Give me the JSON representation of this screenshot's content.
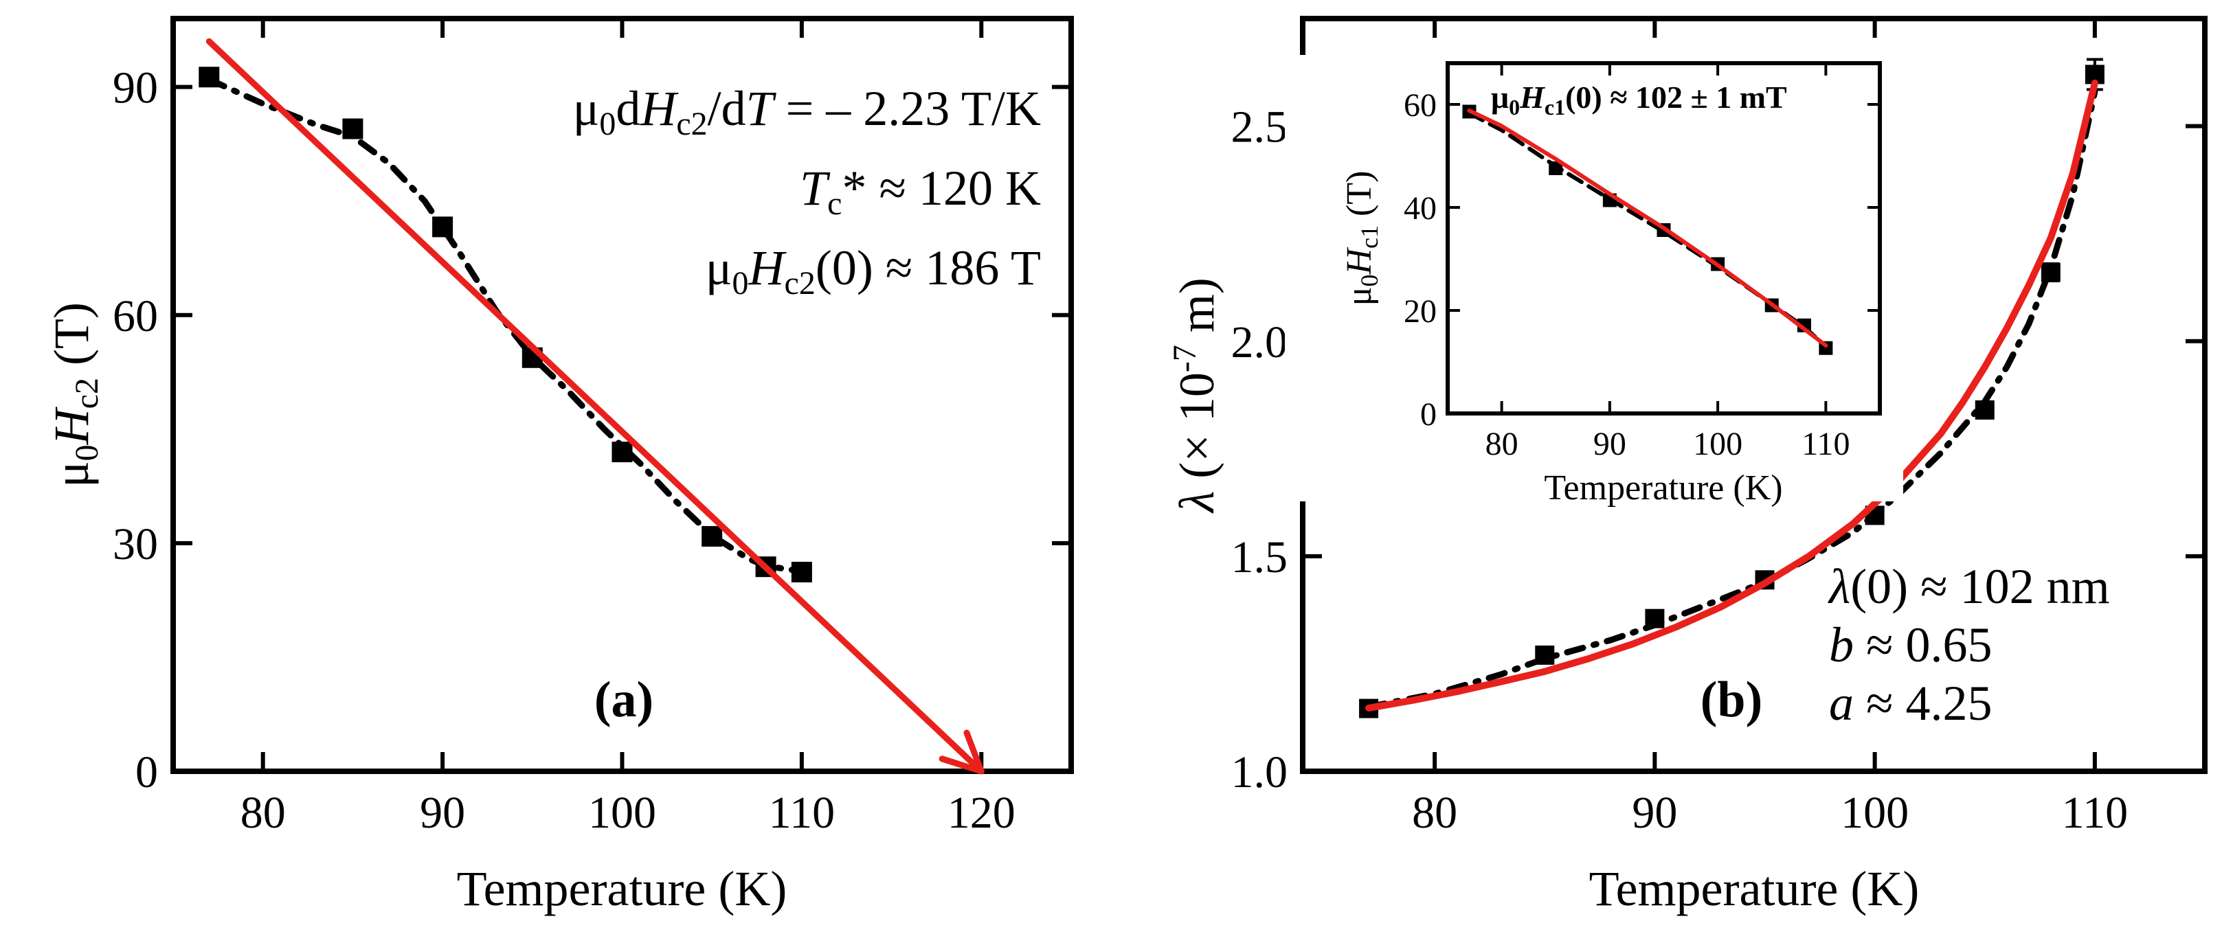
{
  "chart_data": [
    {
      "id": "a",
      "type": "scatter",
      "panel_label": "(a)",
      "xlabel": "Temperature (K)",
      "ylabel": {
        "mu": "μ",
        "sub0": "0",
        "H": "H",
        "sub": "c2",
        "unit": " (T)"
      },
      "xlim": [
        75,
        125
      ],
      "ylim": [
        0,
        99
      ],
      "xticks": [
        80,
        90,
        100,
        110,
        120
      ],
      "yticks": [
        0,
        30,
        60,
        90
      ],
      "series": [
        {
          "name": "data",
          "style": "square-marker",
          "x": [
            77,
            85,
            90,
            95,
            100,
            105,
            108,
            110
          ],
          "y": [
            91.3,
            84.5,
            71.6,
            54.4,
            42.0,
            30.9,
            26.9,
            26.2
          ]
        },
        {
          "name": "fit",
          "style": "dash-dot",
          "x": [
            77,
            80,
            83,
            85,
            87,
            89,
            91,
            93,
            95,
            97,
            99,
            101,
            103,
            105,
            107,
            108,
            110
          ],
          "y": [
            91.0,
            87.8,
            85.0,
            83.5,
            80.0,
            75.0,
            68.0,
            60.5,
            54.5,
            50.0,
            45.0,
            40.5,
            35.5,
            31.0,
            28.0,
            27.0,
            26.3
          ]
        },
        {
          "name": "linear-extrapolation",
          "style": "red-arrow",
          "color": "#e8211d",
          "x": [
            77,
            120
          ],
          "y": [
            96,
            0
          ]
        }
      ],
      "annotations": {
        "slope": {
          "a": "μ",
          "b": "0",
          "c": "d",
          "d": "H",
          "e": "c2",
          "f": "/d",
          "g": "T",
          "h": " = – 2.23 T/K"
        },
        "tc": {
          "a": "T",
          "b": "c",
          "c": "* ≈ 120 K"
        },
        "hc0": {
          "a": "μ",
          "b": "0",
          "c": "H",
          "d": "c2",
          "e": "(0) ≈ 186 T"
        }
      }
    },
    {
      "id": "b",
      "type": "scatter",
      "panel_label": "(b)",
      "xlabel": "Temperature (K)",
      "ylabel": {
        "a": "λ",
        "b": " (× 10",
        "c": "-7",
        "d": " m)"
      },
      "xlim": [
        74,
        115
      ],
      "ylim": [
        1.0,
        2.75
      ],
      "xticks": [
        80,
        90,
        100,
        110
      ],
      "yticks": [
        1.0,
        1.5,
        2.0,
        2.5
      ],
      "series": [
        {
          "name": "data",
          "style": "square-marker-with-errorbars",
          "x": [
            77,
            85,
            90,
            95,
            100,
            105,
            108,
            110
          ],
          "y": [
            1.146,
            1.27,
            1.355,
            1.445,
            1.595,
            1.84,
            2.16,
            2.62
          ],
          "err": [
            0.008,
            0.012,
            0.012,
            0.012,
            0.012,
            0.015,
            0.02,
            0.035
          ]
        },
        {
          "name": "fit-dashed",
          "style": "dash-dot",
          "x": [
            77,
            80,
            83,
            85,
            88,
            90,
            93,
            95,
            97,
            99,
            101,
            103,
            105,
            106,
            107,
            108,
            109,
            110
          ],
          "y": [
            1.15,
            1.18,
            1.225,
            1.262,
            1.305,
            1.34,
            1.4,
            1.44,
            1.495,
            1.555,
            1.64,
            1.74,
            1.86,
            1.94,
            2.04,
            2.17,
            2.34,
            2.58
          ]
        },
        {
          "name": "fit-red",
          "style": "red-solid",
          "color": "#e8211d",
          "x": [
            77,
            79,
            81,
            83,
            85,
            87,
            89,
            91,
            93,
            95,
            97,
            99,
            101,
            103,
            104,
            105,
            106,
            107,
            108,
            109,
            110
          ],
          "y": [
            1.147,
            1.165,
            1.185,
            1.208,
            1.232,
            1.262,
            1.296,
            1.336,
            1.382,
            1.437,
            1.5,
            1.575,
            1.67,
            1.785,
            1.858,
            1.94,
            2.03,
            2.13,
            2.24,
            2.39,
            2.6
          ]
        }
      ],
      "annotations": {
        "lambda0": {
          "a": "λ",
          "b": "(0) ≈ 102 nm"
        },
        "b": {
          "a": "b",
          "b": " ≈ 0.65"
        },
        "a": {
          "a": "a",
          "b": " ≈ 4.25"
        }
      },
      "inset": {
        "type": "scatter",
        "xlabel": "Temperature (K)",
        "ylabel": {
          "a": "μ",
          "b": "0",
          "c": "H",
          "d": "c1",
          "e": " (T)"
        },
        "title": {
          "a": "μ",
          "b": "0",
          "c": "H",
          "d": "c1",
          "e": "(0) ≈ 102 ± 1 mT"
        },
        "xlim": [
          75,
          115
        ],
        "ylim": [
          0,
          68
        ],
        "xticks": [
          80,
          90,
          100,
          110
        ],
        "yticks": [
          0,
          20,
          40,
          60
        ],
        "series": [
          {
            "name": "data",
            "style": "square-marker",
            "x": [
              77,
              85,
              90,
              95,
              100,
              105,
              108,
              110
            ],
            "y": [
              58.6,
              47.6,
              41.4,
              35.6,
              29.0,
              21.0,
              17.1,
              12.7
            ]
          },
          {
            "name": "fit-dashed",
            "style": "dashed",
            "x": [
              77,
              80,
              85,
              90,
              95,
              100,
              105,
              108,
              110
            ],
            "y": [
              58.3,
              55.0,
              48.0,
              41.6,
              35.3,
              28.5,
              21.2,
              16.8,
              13.0
            ]
          },
          {
            "name": "fit-red",
            "style": "red-solid",
            "color": "#e8211d",
            "x": [
              77,
              80,
              85,
              90,
              95,
              100,
              105,
              108,
              110
            ],
            "y": [
              58.8,
              55.8,
              49.4,
              42.6,
              36.0,
              28.8,
              21.2,
              16.4,
              13.2
            ]
          }
        ]
      }
    }
  ]
}
